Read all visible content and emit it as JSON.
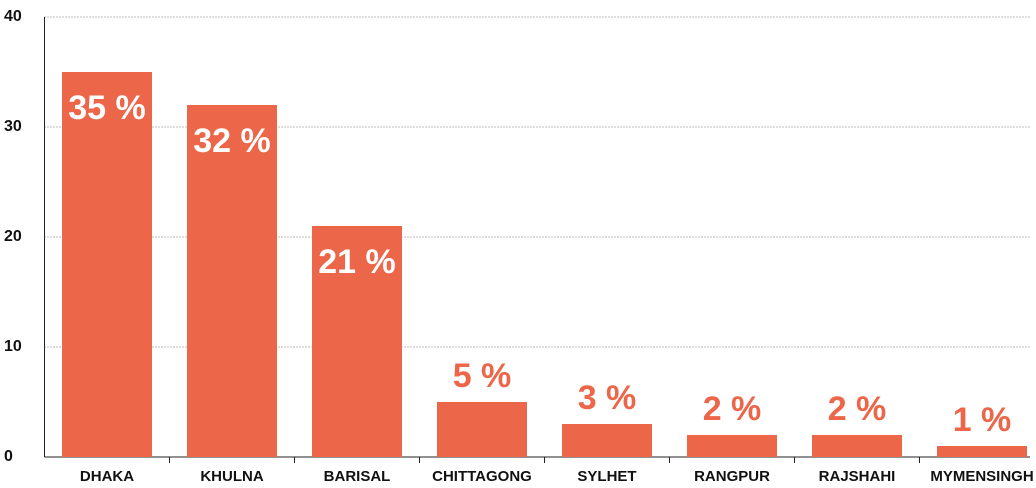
{
  "chart_data": {
    "type": "bar",
    "categories": [
      "DHAKA",
      "KHULNA",
      "BARISAL",
      "CHITTAGONG",
      "SYLHET",
      "RANGPUR",
      "RAJSHAHI",
      "MYMENSINGH"
    ],
    "values": [
      35,
      32,
      21,
      5,
      3,
      2,
      2,
      1
    ],
    "value_labels": [
      "35 %",
      "32 %",
      "21 %",
      "5 %",
      "3 %",
      "2 %",
      "2 %",
      "1 %"
    ],
    "color": "#ec6649",
    "ylim": [
      0,
      40
    ],
    "yticks": [
      0,
      10,
      20,
      30,
      40
    ],
    "grid": true
  }
}
